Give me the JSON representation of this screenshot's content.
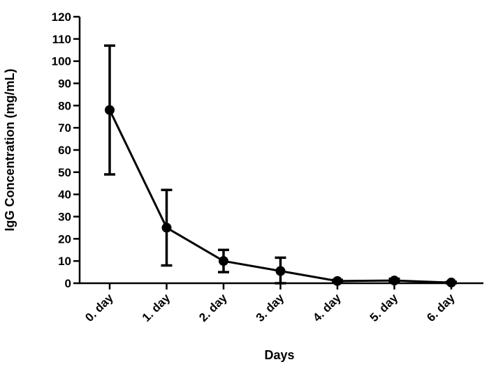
{
  "chart_data": {
    "type": "line",
    "title": "",
    "xlabel": "Days",
    "ylabel": "IgG Concentration (mg/mL)",
    "categories": [
      "0. day",
      "1. day",
      "2. day",
      "3. day",
      "4. day",
      "5. day",
      "6. day"
    ],
    "ylim": [
      0,
      120
    ],
    "yticks": [
      0,
      10,
      20,
      30,
      40,
      50,
      60,
      70,
      80,
      90,
      100,
      110,
      120
    ],
    "grid": false,
    "series": [
      {
        "values": [
          78,
          25,
          10,
          5.5,
          1,
          1.2,
          0.3
        ],
        "error": [
          29,
          17,
          5,
          6,
          0.5,
          0.8,
          0.3
        ]
      }
    ]
  }
}
